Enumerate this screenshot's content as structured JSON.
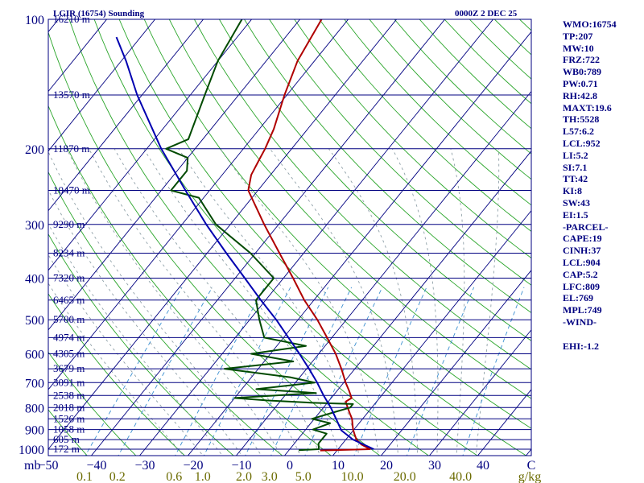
{
  "header": {
    "station": "LGIR (16754) Sounding",
    "time": "0000Z  2 DEC 25"
  },
  "colors": {
    "frame": "#000080",
    "isobar": "#000080",
    "isotherm": "#000080",
    "dry_adiabat": "#2aa52a",
    "moist_adiabat": "#8fa0a8",
    "mixing_ratio": "#3b8fd0",
    "temperature": "#b00000",
    "dewpoint": "#004a00",
    "parcel": "#0000b0",
    "mixing_label": "#6b6b00"
  },
  "chart_data": {
    "type": "skew-t",
    "title": "LGIR (16754) Sounding 0000Z 2 DEC 25",
    "pressure_axis": {
      "label": "mb",
      "range_hpa": [
        1000,
        100
      ],
      "ticks": [
        100,
        200,
        300,
        400,
        500,
        600,
        700,
        800,
        900,
        1000
      ]
    },
    "temperature_axis": {
      "unit": "C",
      "ticks": [
        -50,
        -40,
        -30,
        -20,
        -10,
        0,
        10,
        20,
        30,
        40
      ],
      "tick_labels": [
        "−50",
        "−40",
        "−30",
        "−20",
        "−10",
        "0",
        "10",
        "20",
        "30",
        "40"
      ],
      "unit_label": "C",
      "range_at_base_c": [
        -50,
        50
      ]
    },
    "mixing_ratio_axis": {
      "unit": "g/kg",
      "labels": [
        "0.1",
        "0.2",
        "0.6",
        "1.0",
        "2.0",
        "3.0",
        "5.0",
        "10.0",
        "20.0",
        "40.0"
      ],
      "values": [
        0.1,
        0.2,
        0.6,
        1.0,
        2.0,
        3.0,
        5.0,
        10.0,
        20.0,
        40.0
      ]
    },
    "heights": [
      {
        "p": 100,
        "label": "16210 m"
      },
      {
        "p": 150,
        "label": "13570 m"
      },
      {
        "p": 200,
        "label": "11870 m"
      },
      {
        "p": 250,
        "label": "10470 m"
      },
      {
        "p": 300,
        "label": "9290 m"
      },
      {
        "p": 350,
        "label": "8234 m"
      },
      {
        "p": 400,
        "label": "7320 m"
      },
      {
        "p": 450,
        "label": "6465 m"
      },
      {
        "p": 500,
        "label": "5700 m"
      },
      {
        "p": 550,
        "label": "4974 m"
      },
      {
        "p": 600,
        "label": "4305 m"
      },
      {
        "p": 650,
        "label": "3679 m"
      },
      {
        "p": 700,
        "label": "3091 m"
      },
      {
        "p": 750,
        "label": "2538 m"
      },
      {
        "p": 800,
        "label": "2018 m"
      },
      {
        "p": 850,
        "label": "1526 m"
      },
      {
        "p": 900,
        "label": "1058 m"
      },
      {
        "p": 950,
        "label": "605 m"
      },
      {
        "p": 1000,
        "label": "172 m"
      }
    ],
    "series": [
      {
        "name": "temperature",
        "points": [
          {
            "p": 1007,
            "t": 6.5
          },
          {
            "p": 1000,
            "t": 16.6
          },
          {
            "p": 975,
            "t": 14.0
          },
          {
            "p": 950,
            "t": 12.2
          },
          {
            "p": 925,
            "t": 11.0
          },
          {
            "p": 900,
            "t": 9.8
          },
          {
            "p": 875,
            "t": 8.8
          },
          {
            "p": 850,
            "t": 7.8
          },
          {
            "p": 825,
            "t": 6.4
          },
          {
            "p": 800,
            "t": 5.0
          },
          {
            "p": 775,
            "t": 3.6
          },
          {
            "p": 760,
            "t": 4.2
          },
          {
            "p": 730,
            "t": 2.4
          },
          {
            "p": 700,
            "t": 0.4
          },
          {
            "p": 650,
            "t": -2.8
          },
          {
            "p": 600,
            "t": -6.5
          },
          {
            "p": 550,
            "t": -11.0
          },
          {
            "p": 500,
            "t": -16.0
          },
          {
            "p": 450,
            "t": -22.0
          },
          {
            "p": 400,
            "t": -28.0
          },
          {
            "p": 350,
            "t": -35.0
          },
          {
            "p": 300,
            "t": -43.0
          },
          {
            "p": 250,
            "t": -52.0
          },
          {
            "p": 230,
            "t": -54.0
          },
          {
            "p": 210,
            "t": -55.0
          },
          {
            "p": 200,
            "t": -55.5
          },
          {
            "p": 180,
            "t": -57.0
          },
          {
            "p": 150,
            "t": -60.5
          },
          {
            "p": 125,
            "t": -63.5
          },
          {
            "p": 100,
            "t": -65.5
          }
        ]
      },
      {
        "name": "dewpoint",
        "points": [
          {
            "p": 1005,
            "t": 2.0
          },
          {
            "p": 1000,
            "t": 6.0
          },
          {
            "p": 970,
            "t": 5.0
          },
          {
            "p": 950,
            "t": 5.0
          },
          {
            "p": 920,
            "t": 5.0
          },
          {
            "p": 900,
            "t": 1.5
          },
          {
            "p": 870,
            "t": 4.0
          },
          {
            "p": 850,
            "t": -0.5
          },
          {
            "p": 820,
            "t": 3.0
          },
          {
            "p": 800,
            "t": 5.5
          },
          {
            "p": 785,
            "t": 5.5
          },
          {
            "p": 780,
            "t": -3.0
          },
          {
            "p": 770,
            "t": -13.0
          },
          {
            "p": 760,
            "t": -20.0
          },
          {
            "p": 740,
            "t": -4.0
          },
          {
            "p": 725,
            "t": -17.0
          },
          {
            "p": 700,
            "t": -6.0
          },
          {
            "p": 680,
            "t": -12.0
          },
          {
            "p": 650,
            "t": -27.0
          },
          {
            "p": 625,
            "t": -14.0
          },
          {
            "p": 600,
            "t": -24.0
          },
          {
            "p": 575,
            "t": -14.0
          },
          {
            "p": 550,
            "t": -24.0
          },
          {
            "p": 500,
            "t": -28.0
          },
          {
            "p": 450,
            "t": -32.0
          },
          {
            "p": 400,
            "t": -32.0
          },
          {
            "p": 350,
            "t": -41.0
          },
          {
            "p": 300,
            "t": -53.0
          },
          {
            "p": 260,
            "t": -61.0
          },
          {
            "p": 250,
            "t": -68.0
          },
          {
            "p": 225,
            "t": -68.0
          },
          {
            "p": 210,
            "t": -70.0
          },
          {
            "p": 200,
            "t": -76.0
          },
          {
            "p": 190,
            "t": -73.0
          },
          {
            "p": 150,
            "t": -77.0
          },
          {
            "p": 125,
            "t": -80.0
          },
          {
            "p": 100,
            "t": -82.0
          }
        ]
      },
      {
        "name": "parcel",
        "points": [
          {
            "p": 1000,
            "t": 17.4
          },
          {
            "p": 950,
            "t": 11.5
          },
          {
            "p": 904,
            "t": 7.5
          },
          {
            "p": 850,
            "t": 4.5
          },
          {
            "p": 800,
            "t": 1.5
          },
          {
            "p": 750,
            "t": -2.0
          },
          {
            "p": 700,
            "t": -5.5
          },
          {
            "p": 650,
            "t": -9.5
          },
          {
            "p": 600,
            "t": -14.0
          },
          {
            "p": 550,
            "t": -19.0
          },
          {
            "p": 500,
            "t": -24.5
          },
          {
            "p": 450,
            "t": -31.0
          },
          {
            "p": 400,
            "t": -38.0
          },
          {
            "p": 350,
            "t": -46.0
          },
          {
            "p": 300,
            "t": -55.0
          },
          {
            "p": 250,
            "t": -65.0
          },
          {
            "p": 200,
            "t": -77.0
          },
          {
            "p": 150,
            "t": -91.0
          },
          {
            "p": 125,
            "t": -99.0
          },
          {
            "p": 110,
            "t": -105.0
          }
        ]
      }
    ]
  },
  "indices": [
    "WMO:16754",
    "TP:207",
    "MW:10",
    "FRZ:722",
    "WB0:789",
    "PW:0.71",
    "RH:42.8",
    "MAXT:19.6",
    "TH:5528",
    "L57:6.2",
    "LCL:952",
    "LI:5.2",
    "SI:7.1",
    "TT:42",
    "KI:8",
    "SW:43",
    "EI:1.5",
    "-PARCEL-",
    "CAPE:19",
    "CINH:37",
    "LCL:904",
    "CAP:5.2",
    "LFC:809",
    "EL:769",
    "MPL:749",
    "-WIND-",
    "",
    "EHI:-1.2"
  ]
}
